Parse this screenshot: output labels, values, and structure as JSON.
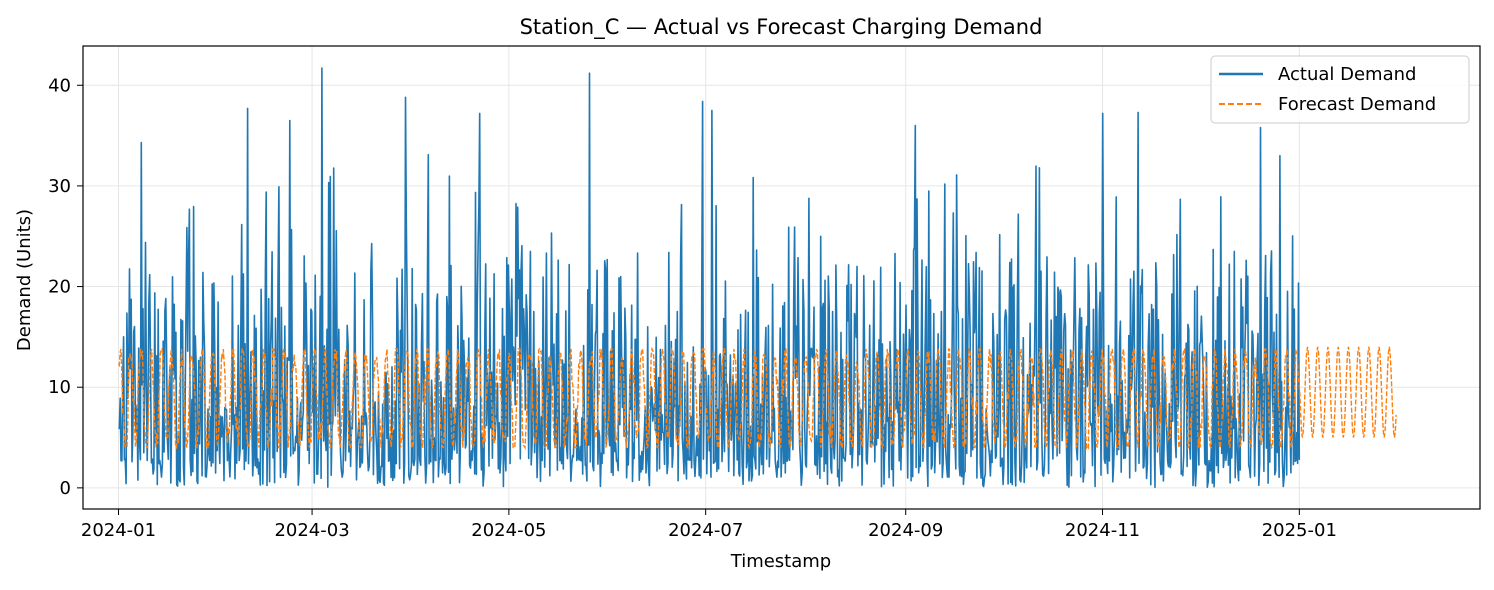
{
  "chart_data": {
    "type": "line",
    "title": "Station_C — Actual vs Forecast Charging Demand",
    "xlabel": "Timestamp",
    "ylabel": "Demand (Units)",
    "xlim": [
      "2023-12-21",
      "2025-02-26"
    ],
    "ylim": [
      -2.1,
      43.9
    ],
    "x_ticks": [
      "2024-01",
      "2024-03",
      "2024-05",
      "2024-07",
      "2024-09",
      "2024-11",
      "2025-01"
    ],
    "y_ticks": [
      0,
      10,
      20,
      30,
      40
    ],
    "grid": true,
    "legend_position": "top-right",
    "series": [
      {
        "name": "Actual Demand",
        "style": "solid",
        "color": "#1f77b4",
        "x_range": [
          "2024-01-01",
          "2025-01-01"
        ],
        "typical_band": [
          2,
          20
        ],
        "min": 0,
        "peaks": [
          {
            "x": "2024-01-08",
            "y": 34.3
          },
          {
            "x": "2024-02-10",
            "y": 37.7
          },
          {
            "x": "2024-02-23",
            "y": 36.5
          },
          {
            "x": "2024-03-04",
            "y": 41.7
          },
          {
            "x": "2024-03-30",
            "y": 38.8
          },
          {
            "x": "2024-04-06",
            "y": 33.1
          },
          {
            "x": "2024-04-22",
            "y": 37.2
          },
          {
            "x": "2024-05-26",
            "y": 41.2
          },
          {
            "x": "2024-06-30",
            "y": 38.4
          },
          {
            "x": "2024-07-03",
            "y": 37.5
          },
          {
            "x": "2024-09-04",
            "y": 36.0
          },
          {
            "x": "2024-11-01",
            "y": 37.2
          },
          {
            "x": "2024-11-12",
            "y": 37.3
          },
          {
            "x": "2024-12-20",
            "y": 35.8
          },
          {
            "x": "2024-12-26",
            "y": 33.0
          }
        ]
      },
      {
        "name": "Forecast Demand",
        "style": "dashed",
        "color": "#ff7f0e",
        "x_range": [
          "2024-01-01",
          "2025-01-31"
        ],
        "typical_band": [
          4,
          13.8
        ],
        "tail_band": {
          "x_range": [
            "2025-01-01",
            "2025-01-31"
          ],
          "y_range": [
            5,
            14
          ]
        }
      }
    ]
  }
}
